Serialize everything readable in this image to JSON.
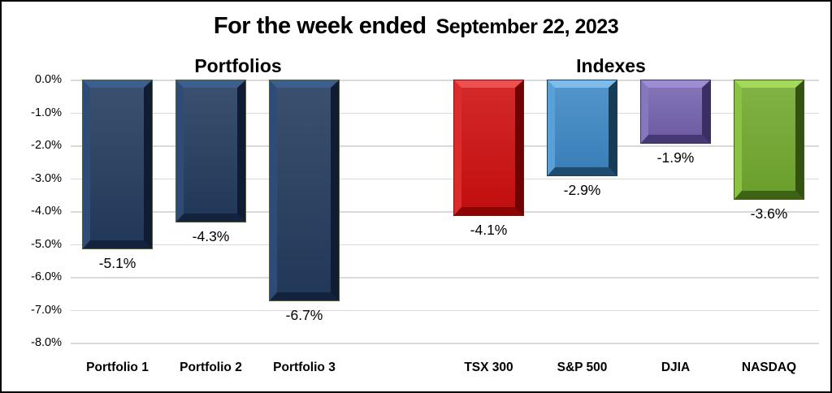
{
  "title": {
    "main": "For the week ended",
    "date": "September 22, 2023"
  },
  "group_headers": {
    "portfolios": "Portfolios",
    "indexes": "Indexes"
  },
  "chart_data": {
    "type": "bar",
    "title": "For the week ended September 22, 2023",
    "group_labels": [
      "Portfolios",
      "Indexes"
    ],
    "categories": [
      "Portfolio 1",
      "Portfolio 2",
      "Portfolio 3",
      "TSX 300",
      "S&P 500",
      "DJIA",
      "NASDAQ"
    ],
    "groups": [
      "Portfolios",
      "Portfolios",
      "Portfolios",
      "Indexes",
      "Indexes",
      "Indexes",
      "Indexes"
    ],
    "values": [
      -5.1,
      -4.3,
      -6.7,
      -4.1,
      -2.9,
      -1.9,
      -3.6
    ],
    "data_labels": [
      "-5.1%",
      "-4.3%",
      "-6.7%",
      "-4.1%",
      "-2.9%",
      "-1.9%",
      "-3.6%"
    ],
    "unit": "percent",
    "xlabel": "",
    "ylabel": "",
    "ylim": [
      -8,
      0
    ],
    "y_ticks": [
      "0.0%",
      "-1.0%",
      "-2.0%",
      "-3.0%",
      "-4.0%",
      "-5.0%",
      "-6.0%",
      "-7.0%",
      "-8.0%"
    ],
    "grid": true,
    "legend": false,
    "gridline_color": "#d9d9d9",
    "bar_styles": [
      {
        "face": "#243c5e",
        "hi": "#3c5f8f",
        "mid": "#2e4c77",
        "lo": "#0f1c33",
        "lo2": "#14233d",
        "edge": "#4d5f2b"
      },
      {
        "face": "#243c5e",
        "hi": "#3c5f8f",
        "mid": "#2e4c77",
        "lo": "#0f1c33",
        "lo2": "#14233d",
        "edge": "#4d5f2b"
      },
      {
        "face": "#243c5e",
        "hi": "#3c5f8f",
        "mid": "#2e4c77",
        "lo": "#0f1c33",
        "lo2": "#14233d",
        "edge": "#4d5f2b"
      },
      {
        "face": "#ce1010",
        "hi": "#ec5050",
        "mid": "#dc2b2b",
        "lo": "#720202",
        "lo2": "#8b0505",
        "edge": "#7a1208"
      },
      {
        "face": "#3e88c5",
        "hi": "#7fbcec",
        "mid": "#5aa0d8",
        "lo": "#173c58",
        "lo2": "#1f4b6e",
        "edge": "#1c3f5e"
      },
      {
        "face": "#7563ae",
        "hi": "#9d8dd0",
        "mid": "#8677be",
        "lo": "#3a2f63",
        "lo2": "#453975",
        "edge": "#3c3166"
      },
      {
        "face": "#72a92f",
        "hi": "#a4d95b",
        "mid": "#8cc243",
        "lo": "#33510f",
        "lo2": "#3f6316",
        "edge": "#3f5b17"
      }
    ]
  }
}
